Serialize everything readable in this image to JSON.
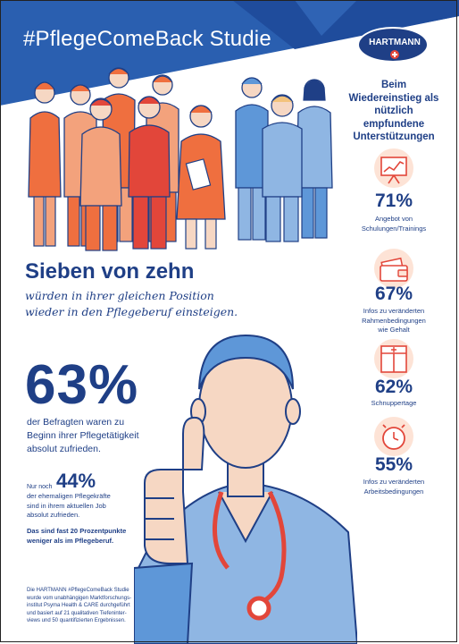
{
  "header": {
    "title": "#PflegeComeBack Studie",
    "logo_text": "HARTMANN"
  },
  "sidebar": {
    "heading": "Beim Wiedereinstieg als nützlich empfundene Unterstützungen",
    "stats": [
      {
        "icon": "presentation-board-icon",
        "value": "71%",
        "line1": "Angebot von",
        "line2": "Schulungen/Trainings",
        "line3": ""
      },
      {
        "icon": "wallet-icon",
        "value": "67%",
        "line1": "Infos zu veränderten",
        "line2": "Rahmenbedingungen",
        "line3": "wie Gehalt"
      },
      {
        "icon": "hospital-doors-icon",
        "value": "62%",
        "line1": "Schnuppertage",
        "line2": "",
        "line3": ""
      },
      {
        "icon": "stopwatch-icon",
        "value": "55%",
        "line1": "Infos zu veränderten",
        "line2": "Arbeitsbedingungen",
        "line3": ""
      }
    ]
  },
  "main": {
    "headline": "Sieben von zehn",
    "subline1": "würden in ihrer gleichen Position",
    "subline2": "wieder in den Pflegeberuf einsteigen.",
    "big_percent": "63%",
    "big_desc_1": "der Befragten waren zu",
    "big_desc_2": "Beginn ihrer Pflegetätigkeit",
    "big_desc_3": "absolut zufrieden.",
    "nur_noch": "Nur noch",
    "mid_percent": "44%",
    "mid_desc_1": "der ehemaligen Pflegekräfte",
    "mid_desc_2": "sind in ihrem aktuellen Job",
    "mid_desc_3": "absolut zufrieden.",
    "note_1": "Das sind fast 20 Prozentpunkte",
    "note_2": "weniger als im Pflegeberuf.",
    "footnote_1": "Die HARTMANN #PflegeComeBack Studie",
    "footnote_2": "wurde vom unabhängigen Marktforschungs-",
    "footnote_3": "institut Psyma Health & CARE durchgeführt",
    "footnote_4": "und basiert auf 21 qualitativen Tiefeninter-",
    "footnote_5": "views und 50 quantifizierten Ergebnissen."
  },
  "colors": {
    "navy": "#1f3f86",
    "banner_blue": "#2a5fb0",
    "orange": "#ef6f3f",
    "orange_light": "#f3a27c",
    "red": "#e2463a",
    "blue_light": "#8fb6e3",
    "blue_mid": "#5e97d8",
    "skin": "#f6d7c3"
  }
}
